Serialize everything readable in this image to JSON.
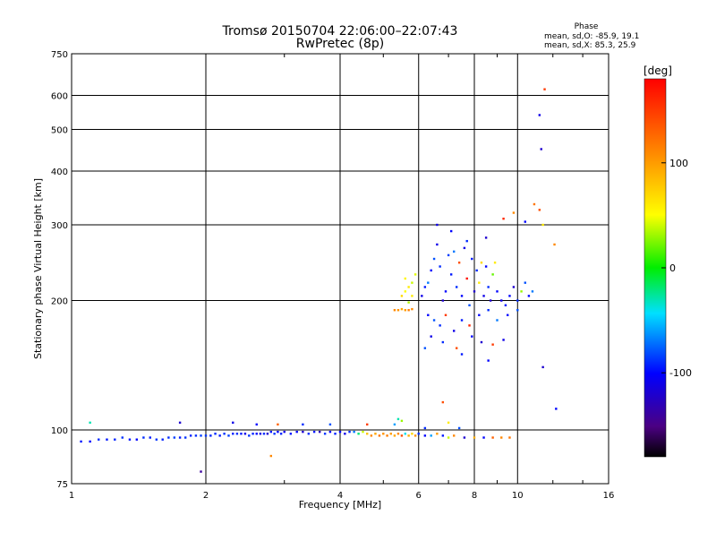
{
  "title": {
    "line1": "Tromsø 20150704 22:06:00–22:07:43",
    "line2": "RwPretec (8p)"
  },
  "phase_info": {
    "heading": "Phase",
    "o_line": "mean, sd,O: -85.9, 19.1",
    "x_line": "mean, sd,X:  85.3, 25.9"
  },
  "colorbar": {
    "unit": "[deg]",
    "tick_labels": [
      "100",
      "0",
      "-100"
    ],
    "tick_values": [
      100,
      0,
      -100
    ],
    "range": [
      -180,
      180
    ],
    "colormap": "rainbow-black-to-red"
  },
  "chart_data": {
    "type": "scatter",
    "xlabel": "Frequency [MHz]",
    "ylabel": "Stationary phase Virtual Height [km]",
    "xscale": "log",
    "yscale": "log",
    "xlim": [
      1,
      16
    ],
    "ylim": [
      75,
      750
    ],
    "xticks": [
      {
        "value": 1,
        "label": "1"
      },
      {
        "value": 2,
        "label": "2"
      },
      {
        "value": 4,
        "label": "4"
      },
      {
        "value": 6,
        "label": "6"
      },
      {
        "value": 8,
        "label": "8"
      },
      {
        "value": 10,
        "label": "10"
      },
      {
        "value": 16,
        "label": "16"
      }
    ],
    "yticks": [
      {
        "value": 75,
        "label": "75"
      },
      {
        "value": 100,
        "label": "100"
      },
      {
        "value": 200,
        "label": "200"
      },
      {
        "value": 300,
        "label": "300"
      },
      {
        "value": 400,
        "label": "400"
      },
      {
        "value": 500,
        "label": "500"
      },
      {
        "value": 600,
        "label": "600"
      },
      {
        "value": 750,
        "label": "750"
      }
    ],
    "grid": true,
    "series": [
      {
        "color_by": "phase_deg",
        "points": [
          [
            1.05,
            94,
            -95
          ],
          [
            1.1,
            94,
            -100
          ],
          [
            1.15,
            95,
            -90
          ],
          [
            1.2,
            95,
            -95
          ],
          [
            1.25,
            95,
            -92
          ],
          [
            1.3,
            96,
            -88
          ],
          [
            1.35,
            95,
            -95
          ],
          [
            1.4,
            95,
            -100
          ],
          [
            1.45,
            96,
            -90
          ],
          [
            1.5,
            96,
            -95
          ],
          [
            1.55,
            95,
            -88
          ],
          [
            1.6,
            95,
            -92
          ],
          [
            1.65,
            96,
            -90
          ],
          [
            1.7,
            96,
            -85
          ],
          [
            1.75,
            96,
            -95
          ],
          [
            1.8,
            96,
            -88
          ],
          [
            1.85,
            97,
            -92
          ],
          [
            1.9,
            97,
            -90
          ],
          [
            1.95,
            97,
            -85
          ],
          [
            2.0,
            97,
            -88
          ],
          [
            2.05,
            97,
            -92
          ],
          [
            2.1,
            98,
            -90
          ],
          [
            2.15,
            97,
            -95
          ],
          [
            2.2,
            98,
            -88
          ],
          [
            2.25,
            97,
            -85
          ],
          [
            2.3,
            98,
            -92
          ],
          [
            2.35,
            98,
            -90
          ],
          [
            2.4,
            98,
            -95
          ],
          [
            2.45,
            98,
            -110
          ],
          [
            2.5,
            97,
            -88
          ],
          [
            2.55,
            98,
            -92
          ],
          [
            2.6,
            98,
            -100
          ],
          [
            2.65,
            98,
            -115
          ],
          [
            2.7,
            98,
            -90
          ],
          [
            2.75,
            98,
            -120
          ],
          [
            2.8,
            99,
            -95
          ],
          [
            2.85,
            98,
            -88
          ],
          [
            2.9,
            99,
            -100
          ],
          [
            2.95,
            98,
            -92
          ],
          [
            3.0,
            99,
            -110
          ],
          [
            3.1,
            98,
            -95
          ],
          [
            3.2,
            99,
            -100
          ],
          [
            3.3,
            99,
            -120
          ],
          [
            3.4,
            98,
            -90
          ],
          [
            3.5,
            99,
            -95
          ],
          [
            3.6,
            99,
            -130
          ],
          [
            3.7,
            98,
            -88
          ],
          [
            3.8,
            99,
            -105
          ],
          [
            3.9,
            98,
            -92
          ],
          [
            4.0,
            99,
            -100
          ],
          [
            4.1,
            98,
            -110
          ],
          [
            4.2,
            99,
            -90
          ],
          [
            4.3,
            99,
            -70
          ],
          [
            4.4,
            98,
            -20
          ],
          [
            4.5,
            99,
            40
          ],
          [
            4.6,
            98,
            80
          ],
          [
            4.7,
            97,
            110
          ],
          [
            4.8,
            98,
            95
          ],
          [
            4.9,
            97,
            120
          ],
          [
            5.0,
            98,
            105
          ],
          [
            5.1,
            97,
            115
          ],
          [
            5.2,
            98,
            100
          ],
          [
            5.3,
            97,
            95
          ],
          [
            5.4,
            98,
            110
          ],
          [
            5.5,
            97,
            140
          ],
          [
            5.6,
            98,
            -40
          ],
          [
            5.7,
            97,
            90
          ],
          [
            5.8,
            98,
            70
          ],
          [
            5.9,
            97,
            105
          ],
          [
            6.0,
            98,
            -90
          ],
          [
            6.2,
            97,
            -100
          ],
          [
            6.4,
            97,
            -60
          ],
          [
            6.6,
            98,
            100
          ],
          [
            6.8,
            97,
            -95
          ],
          [
            7.0,
            96,
            40
          ],
          [
            7.2,
            97,
            110
          ],
          [
            7.6,
            96,
            -120
          ],
          [
            8.0,
            96,
            90
          ],
          [
            8.4,
            96,
            -100
          ],
          [
            8.8,
            96,
            130
          ],
          [
            9.2,
            96,
            110
          ],
          [
            9.6,
            96,
            120
          ],
          [
            1.1,
            104,
            -30
          ],
          [
            1.75,
            104,
            -120
          ],
          [
            2.3,
            104,
            -110
          ],
          [
            2.6,
            103,
            -100
          ],
          [
            2.9,
            103,
            130
          ],
          [
            3.3,
            103,
            -90
          ],
          [
            3.8,
            103,
            -80
          ],
          [
            4.6,
            103,
            150
          ],
          [
            5.3,
            103,
            -60
          ],
          [
            5.5,
            105,
            30
          ],
          [
            6.2,
            101,
            -90
          ],
          [
            7.4,
            101,
            -80
          ],
          [
            2.8,
            87,
            110
          ],
          [
            1.95,
            80,
            -140
          ],
          [
            6.8,
            116,
            140
          ],
          [
            5.4,
            106,
            -30
          ],
          [
            7.0,
            104,
            60
          ],
          [
            5.3,
            190,
            110
          ],
          [
            5.4,
            190,
            105
          ],
          [
            5.5,
            191,
            95
          ],
          [
            5.6,
            190,
            100
          ],
          [
            5.7,
            190,
            115
          ],
          [
            5.8,
            191,
            110
          ],
          [
            5.5,
            205,
            70
          ],
          [
            5.6,
            210,
            50
          ],
          [
            5.7,
            215,
            60
          ],
          [
            5.8,
            220,
            40
          ],
          [
            5.6,
            225,
            55
          ],
          [
            5.9,
            230,
            45
          ],
          [
            5.7,
            198,
            35
          ],
          [
            5.8,
            205,
            60
          ],
          [
            6.1,
            205,
            -110
          ],
          [
            6.2,
            215,
            -95
          ],
          [
            6.3,
            220,
            -70
          ],
          [
            6.4,
            235,
            -100
          ],
          [
            6.5,
            250,
            -80
          ],
          [
            6.6,
            270,
            -110
          ],
          [
            6.7,
            240,
            -90
          ],
          [
            6.8,
            200,
            -120
          ],
          [
            6.9,
            210,
            -100
          ],
          [
            7.0,
            255,
            -85
          ],
          [
            7.1,
            230,
            -95
          ],
          [
            7.2,
            260,
            -70
          ],
          [
            7.3,
            215,
            -90
          ],
          [
            7.4,
            245,
            140
          ],
          [
            7.5,
            205,
            -100
          ],
          [
            7.6,
            265,
            -110
          ],
          [
            7.7,
            225,
            170
          ],
          [
            7.8,
            195,
            -80
          ],
          [
            7.9,
            250,
            -95
          ],
          [
            8.0,
            210,
            -120
          ],
          [
            8.1,
            235,
            -90
          ],
          [
            8.2,
            220,
            60
          ],
          [
            8.3,
            245,
            70
          ],
          [
            8.4,
            205,
            -110
          ],
          [
            8.5,
            240,
            -100
          ],
          [
            8.6,
            215,
            -90
          ],
          [
            8.7,
            200,
            -120
          ],
          [
            8.8,
            230,
            20
          ],
          [
            8.9,
            245,
            60
          ],
          [
            9.0,
            210,
            -100
          ],
          [
            9.2,
            200,
            -110
          ],
          [
            9.4,
            195,
            -95
          ],
          [
            9.6,
            205,
            -100
          ],
          [
            9.8,
            215,
            -120
          ],
          [
            10.0,
            200,
            -90
          ],
          [
            10.2,
            210,
            30
          ],
          [
            10.4,
            220,
            -80
          ],
          [
            10.6,
            205,
            -100
          ],
          [
            10.8,
            210,
            -70
          ],
          [
            6.3,
            185,
            -100
          ],
          [
            6.5,
            180,
            -80
          ],
          [
            6.7,
            175,
            -90
          ],
          [
            6.9,
            185,
            150
          ],
          [
            7.2,
            170,
            -110
          ],
          [
            7.5,
            180,
            -95
          ],
          [
            7.8,
            175,
            160
          ],
          [
            8.2,
            185,
            -100
          ],
          [
            8.6,
            190,
            -90
          ],
          [
            9.0,
            180,
            -70
          ],
          [
            9.5,
            185,
            -100
          ],
          [
            10.0,
            190,
            -80
          ],
          [
            6.4,
            165,
            -110
          ],
          [
            6.8,
            160,
            -90
          ],
          [
            7.3,
            155,
            140
          ],
          [
            7.9,
            165,
            -100
          ],
          [
            8.3,
            160,
            -120
          ],
          [
            8.8,
            158,
            150
          ],
          [
            9.3,
            162,
            -110
          ],
          [
            6.2,
            155,
            -80
          ],
          [
            7.5,
            150,
            -95
          ],
          [
            8.6,
            145,
            -100
          ],
          [
            6.6,
            300,
            -110
          ],
          [
            7.1,
            290,
            -100
          ],
          [
            7.7,
            275,
            -90
          ],
          [
            8.5,
            280,
            -120
          ],
          [
            9.3,
            310,
            160
          ],
          [
            9.8,
            320,
            110
          ],
          [
            10.4,
            305,
            -100
          ],
          [
            10.9,
            335,
            120
          ],
          [
            11.2,
            325,
            140
          ],
          [
            12.1,
            270,
            110
          ],
          [
            11.4,
            300,
            60
          ],
          [
            11.4,
            140,
            -120
          ],
          [
            12.2,
            112,
            -100
          ],
          [
            11.2,
            540,
            -110
          ],
          [
            11.3,
            450,
            -120
          ],
          [
            11.5,
            620,
            150
          ]
        ]
      }
    ]
  }
}
